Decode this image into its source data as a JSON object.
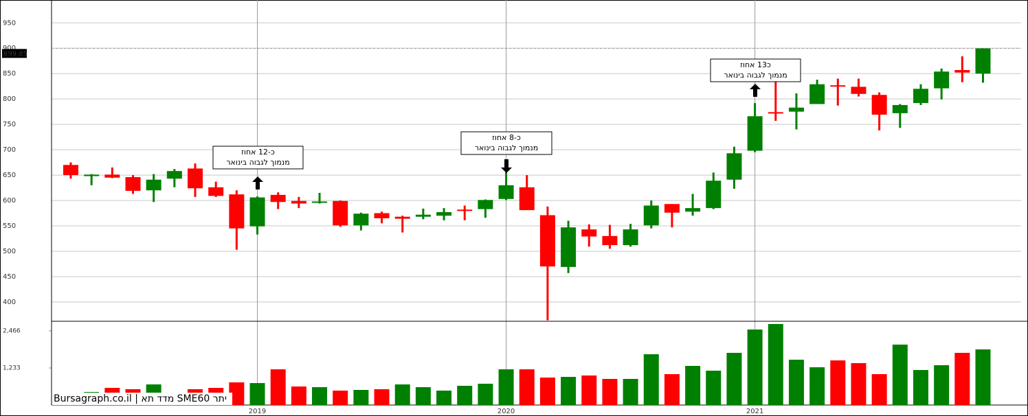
{
  "chart_data": {
    "type": "candlestick",
    "categories": [
      null,
      null,
      null,
      null,
      null,
      null,
      null,
      null,
      null,
      "2019",
      null,
      null,
      null,
      null,
      null,
      null,
      null,
      null,
      null,
      null,
      null,
      "2020",
      null,
      null,
      null,
      null,
      null,
      null,
      null,
      null,
      null,
      null,
      null,
      "2021",
      null,
      null,
      null,
      null,
      null,
      null,
      null,
      null,
      null,
      null,
      null
    ],
    "open": [
      670,
      648,
      651,
      646,
      620,
      643,
      663,
      626,
      612,
      549,
      611,
      599,
      596,
      599,
      551,
      575,
      568,
      568,
      570,
      582,
      583,
      603,
      626,
      571,
      469,
      543,
      530,
      512,
      551,
      593,
      578,
      585,
      641,
      698,
      774,
      775,
      790,
      827,
      824,
      808,
      772,
      792,
      821,
      857,
      850
    ],
    "high": [
      675,
      652,
      665,
      650,
      652,
      662,
      673,
      637,
      620,
      608,
      616,
      607,
      615,
      600,
      576,
      578,
      570,
      584,
      585,
      590,
      602,
      656,
      650,
      588,
      560,
      553,
      552,
      554,
      600,
      593,
      613,
      655,
      706,
      792,
      872,
      811,
      838,
      840,
      840,
      813,
      790,
      829,
      860,
      884,
      900
    ],
    "low": [
      643,
      630,
      644,
      613,
      597,
      626,
      607,
      607,
      503,
      533,
      583,
      585,
      594,
      548,
      541,
      555,
      537,
      563,
      561,
      561,
      566,
      601,
      581,
      364,
      457,
      509,
      505,
      509,
      545,
      547,
      570,
      583,
      623,
      695,
      757,
      740,
      790,
      787,
      805,
      738,
      743,
      788,
      799,
      833,
      832
    ],
    "close": [
      650,
      651,
      645,
      619,
      641,
      658,
      624,
      609,
      545,
      606,
      597,
      594,
      598,
      551,
      574,
      565,
      564,
      572,
      577,
      580,
      601,
      630,
      581,
      470,
      547,
      529,
      512,
      543,
      590,
      576,
      585,
      639,
      693,
      766,
      772,
      783,
      829,
      825,
      810,
      769,
      788,
      820,
      854,
      852,
      899.85
    ],
    "up_color": "#008000",
    "down_color": "#ff0000",
    "ylim": [
      362,
      995
    ],
    "yticks": [
      400,
      450,
      500,
      550,
      600,
      650,
      700,
      750,
      800,
      850,
      900,
      950
    ],
    "grid": true,
    "last_price": 899.85,
    "volume": {
      "values": [
        0,
        434,
        570,
        525,
        685,
        0,
        525,
        570,
        753,
        730,
        1187,
        616,
        594,
        479,
        502,
        525,
        685,
        594,
        479,
        639,
        708,
        1187,
        1187,
        913,
        936,
        982,
        868,
        868,
        1689,
        1027,
        1301,
        1142,
        1735,
        2511,
        2694,
        1507,
        1256,
        1484,
        1393,
        1027,
        2009,
        1164,
        1324,
        1735,
        1849
      ],
      "colors": [
        "#008000",
        "#008000",
        "#ff0000",
        "#ff0000",
        "#008000",
        "#008000",
        "#ff0000",
        "#ff0000",
        "#ff0000",
        "#008000",
        "#ff0000",
        "#ff0000",
        "#008000",
        "#ff0000",
        "#008000",
        "#ff0000",
        "#008000",
        "#008000",
        "#008000",
        "#008000",
        "#008000",
        "#008000",
        "#ff0000",
        "#ff0000",
        "#008000",
        "#ff0000",
        "#ff0000",
        "#008000",
        "#008000",
        "#ff0000",
        "#008000",
        "#008000",
        "#008000",
        "#008000",
        "#008000",
        "#008000",
        "#008000",
        "#ff0000",
        "#ff0000",
        "#ff0000",
        "#008000",
        "#008000",
        "#008000",
        "#ff0000",
        "#008000"
      ],
      "ylim": [
        0,
        2785
      ],
      "yticks": [
        {
          "value": 1233,
          "label": "1,233"
        },
        {
          "value": 2466,
          "label": "2,466"
        }
      ]
    },
    "annotations": [
      {
        "lines": [
          "כ-12 אחוז",
          "מנמוך לגבוה בינואר"
        ]
      },
      {
        "lines": [
          "כ-8 אחוז",
          "מנמוך לגבוה בינואר"
        ]
      },
      {
        "lines": [
          "כ13 אחוז",
          "מנמוך לגבוה בינואר"
        ]
      }
    ],
    "watermark": "Bursagraph.co.il | מדד תא SME60 יתר"
  }
}
